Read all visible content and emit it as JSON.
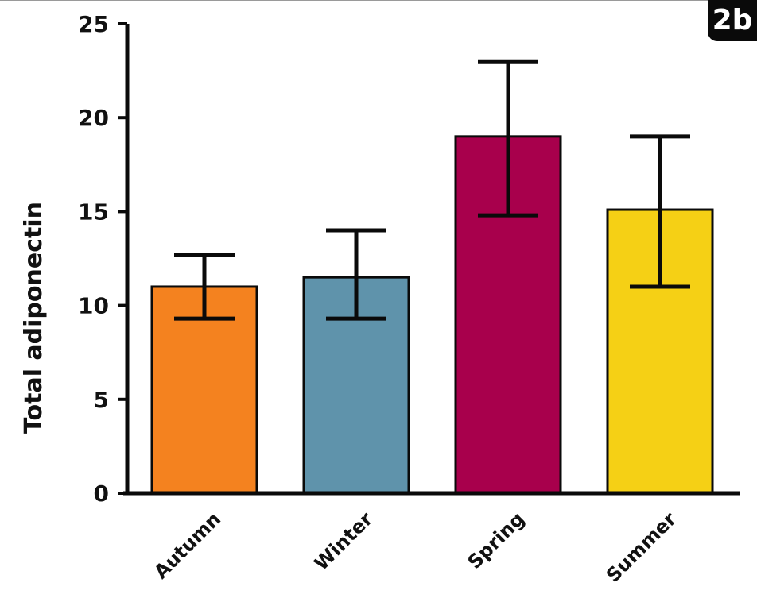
{
  "panel_label": "2b",
  "chart_data": {
    "type": "bar",
    "categories": [
      "Autumn",
      "Winter",
      "Spring",
      "Summer"
    ],
    "values": [
      11.0,
      11.5,
      19.0,
      15.1
    ],
    "error_upper": [
      12.7,
      14.0,
      23.0,
      19.0
    ],
    "error_lower": [
      9.3,
      9.3,
      14.8,
      11.0
    ],
    "colors": [
      "#f4821f",
      "#5f93ab",
      "#a8004c",
      "#f5d015"
    ],
    "title": "",
    "xlabel": "",
    "ylabel": "Total adiponectin",
    "ylim": [
      0,
      25
    ],
    "yticks": [
      0,
      5,
      10,
      15,
      20,
      25
    ],
    "grid": false,
    "legend": "none"
  }
}
